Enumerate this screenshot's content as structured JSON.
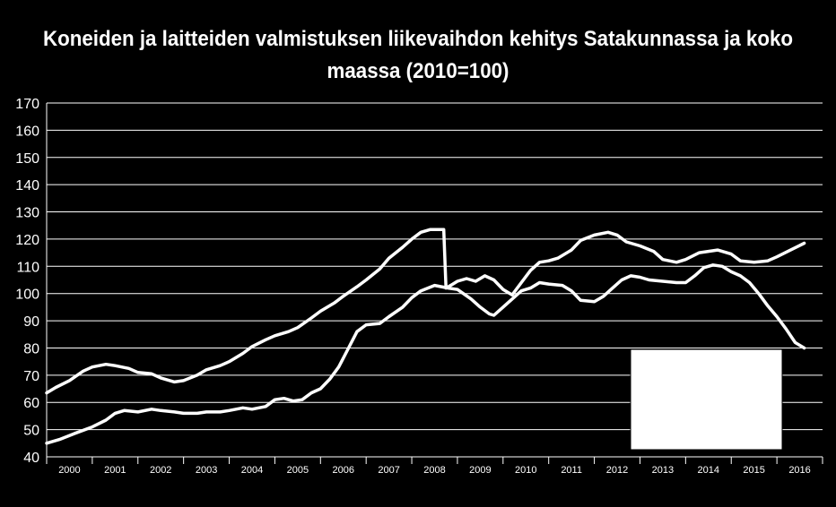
{
  "chart_data": {
    "type": "line",
    "title_line1": "Koneiden ja laitteiden valmistuksen liikevaihdon kehitys Satakunnassa ja koko",
    "title_line2": "maassa (2010=100)",
    "xlabel": "",
    "ylabel": "",
    "ylim": [
      40,
      170
    ],
    "yticks": [
      "170",
      "160",
      "150",
      "140",
      "130",
      "120",
      "110",
      "100",
      "90",
      "80",
      "70",
      "60",
      "50",
      "40"
    ],
    "categories": [
      "2000",
      "2001",
      "2002",
      "2003",
      "2004",
      "2005",
      "2006",
      "2007",
      "2008",
      "2009",
      "2010",
      "2011",
      "2012",
      "2013",
      "2014",
      "2015",
      "2016"
    ],
    "x_domain": [
      2000.0,
      2017.0
    ],
    "grid": true,
    "legend": "covered",
    "series": [
      {
        "points": [
          [
            2000.0,
            63.5
          ],
          [
            2000.2,
            65.5
          ],
          [
            2000.5,
            68
          ],
          [
            2000.8,
            71.5
          ],
          [
            2001.0,
            73
          ],
          [
            2001.3,
            74
          ],
          [
            2001.5,
            73.5
          ],
          [
            2001.8,
            72.5
          ],
          [
            2002.0,
            71
          ],
          [
            2002.3,
            70.5
          ],
          [
            2002.5,
            69
          ],
          [
            2002.8,
            67.5
          ],
          [
            2003.0,
            68
          ],
          [
            2003.3,
            70
          ],
          [
            2003.5,
            72
          ],
          [
            2003.8,
            73.5
          ],
          [
            2004.0,
            75
          ],
          [
            2004.3,
            78
          ],
          [
            2004.5,
            80.5
          ],
          [
            2004.8,
            83
          ],
          [
            2005.0,
            84.5
          ],
          [
            2005.3,
            86
          ],
          [
            2005.5,
            87.5
          ],
          [
            2005.8,
            91
          ],
          [
            2006.0,
            93.5
          ],
          [
            2006.3,
            96.5
          ],
          [
            2006.5,
            99
          ],
          [
            2006.8,
            102.5
          ],
          [
            2007.0,
            105
          ],
          [
            2007.3,
            109
          ],
          [
            2007.5,
            113
          ],
          [
            2007.8,
            117
          ],
          [
            2008.0,
            120
          ],
          [
            2008.2,
            122.5
          ],
          [
            2008.4,
            123.5
          ],
          [
            2008.6,
            123.5
          ],
          [
            2008.7,
            123.5
          ],
          [
            2008.75,
            102
          ],
          [
            2008.9,
            103.5
          ],
          [
            2009.0,
            104.5
          ],
          [
            2009.2,
            105.5
          ],
          [
            2009.4,
            104.5
          ],
          [
            2009.6,
            106.5
          ],
          [
            2009.8,
            105
          ],
          [
            2010.0,
            101.5
          ],
          [
            2010.2,
            99.5
          ],
          [
            2010.4,
            104
          ],
          [
            2010.6,
            108.5
          ],
          [
            2010.8,
            111.5
          ],
          [
            2011.0,
            112
          ],
          [
            2011.2,
            113
          ],
          [
            2011.5,
            116
          ],
          [
            2011.7,
            119.5
          ],
          [
            2012.0,
            121.5
          ],
          [
            2012.3,
            122.5
          ],
          [
            2012.5,
            121.5
          ],
          [
            2012.7,
            119
          ],
          [
            2013.0,
            117.5
          ],
          [
            2013.3,
            115.5
          ],
          [
            2013.5,
            112.5
          ],
          [
            2013.8,
            111.5
          ],
          [
            2014.0,
            112.5
          ],
          [
            2014.3,
            115
          ],
          [
            2014.5,
            115.5
          ],
          [
            2014.7,
            116
          ],
          [
            2015.0,
            114.5
          ],
          [
            2015.2,
            112
          ],
          [
            2015.5,
            111.5
          ],
          [
            2015.8,
            112
          ],
          [
            2016.0,
            113.5
          ],
          [
            2016.3,
            116
          ],
          [
            2016.6,
            118.5
          ]
        ]
      },
      {
        "points": [
          [
            2000.0,
            45
          ],
          [
            2000.3,
            46.5
          ],
          [
            2000.6,
            48.5
          ],
          [
            2001.0,
            51
          ],
          [
            2001.3,
            53.5
          ],
          [
            2001.5,
            56
          ],
          [
            2001.7,
            57
          ],
          [
            2002.0,
            56.5
          ],
          [
            2002.3,
            57.5
          ],
          [
            2002.5,
            57
          ],
          [
            2002.8,
            56.5
          ],
          [
            2003.0,
            56
          ],
          [
            2003.3,
            56
          ],
          [
            2003.5,
            56.5
          ],
          [
            2003.8,
            56.5
          ],
          [
            2004.0,
            57
          ],
          [
            2004.3,
            58
          ],
          [
            2004.5,
            57.5
          ],
          [
            2004.8,
            58.5
          ],
          [
            2005.0,
            61
          ],
          [
            2005.2,
            61.5
          ],
          [
            2005.4,
            60.5
          ],
          [
            2005.6,
            61
          ],
          [
            2005.8,
            63.5
          ],
          [
            2006.0,
            65
          ],
          [
            2006.2,
            68.5
          ],
          [
            2006.4,
            73
          ],
          [
            2006.6,
            79.5
          ],
          [
            2006.8,
            86
          ],
          [
            2007.0,
            88.5
          ],
          [
            2007.3,
            89
          ],
          [
            2007.5,
            91.5
          ],
          [
            2007.8,
            95
          ],
          [
            2008.0,
            98.5
          ],
          [
            2008.2,
            101
          ],
          [
            2008.5,
            103
          ],
          [
            2008.8,
            102
          ],
          [
            2009.0,
            101.5
          ],
          [
            2009.3,
            98
          ],
          [
            2009.5,
            95
          ],
          [
            2009.7,
            92.5
          ],
          [
            2009.8,
            92
          ],
          [
            2010.0,
            95
          ],
          [
            2010.2,
            98
          ],
          [
            2010.4,
            101
          ],
          [
            2010.6,
            102
          ],
          [
            2010.8,
            104
          ],
          [
            2011.0,
            103.5
          ],
          [
            2011.3,
            103
          ],
          [
            2011.5,
            101
          ],
          [
            2011.7,
            97.5
          ],
          [
            2012.0,
            97
          ],
          [
            2012.2,
            99
          ],
          [
            2012.4,
            102
          ],
          [
            2012.6,
            105
          ],
          [
            2012.8,
            106.5
          ],
          [
            2013.0,
            106
          ],
          [
            2013.2,
            105
          ],
          [
            2013.5,
            104.5
          ],
          [
            2013.8,
            104
          ],
          [
            2014.0,
            104
          ],
          [
            2014.2,
            106.5
          ],
          [
            2014.4,
            109.5
          ],
          [
            2014.6,
            110.5
          ],
          [
            2014.8,
            110
          ],
          [
            2015.0,
            108
          ],
          [
            2015.2,
            106.5
          ],
          [
            2015.4,
            104
          ],
          [
            2015.6,
            100
          ],
          [
            2015.8,
            95.5
          ],
          [
            2016.0,
            91.5
          ],
          [
            2016.2,
            87
          ],
          [
            2016.4,
            82
          ],
          [
            2016.6,
            80
          ]
        ]
      }
    ]
  }
}
